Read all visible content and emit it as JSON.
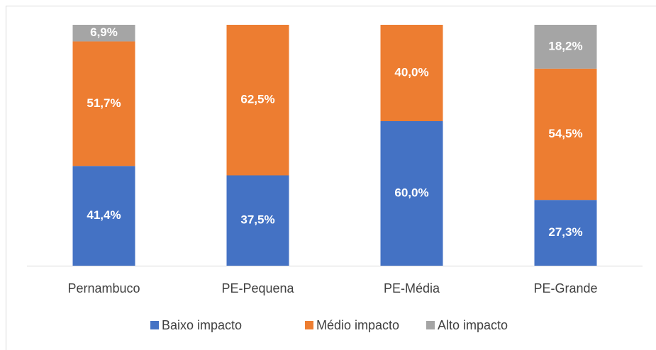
{
  "chart_data": {
    "type": "stacked_bar",
    "categories": [
      "Pernambuco",
      "PE-Pequena",
      "PE-Média",
      "PE-Grande"
    ],
    "series": [
      {
        "name": "Baixo impacto",
        "color": "#4472c4",
        "values": [
          41.4,
          37.5,
          60.0,
          27.3
        ],
        "value_labels": [
          "41,4%",
          "37,5%",
          "60,0%",
          "27,3%"
        ]
      },
      {
        "name": "Médio impacto",
        "color": "#ed7d31",
        "values": [
          51.7,
          62.5,
          40.0,
          54.5
        ],
        "value_labels": [
          "51,7%",
          "62,5%",
          "40,0%",
          "54,5%"
        ]
      },
      {
        "name": "Alto impacto",
        "color": "#a5a5a5",
        "values": [
          6.9,
          null,
          null,
          18.2
        ],
        "value_labels": [
          "6,9%",
          null,
          null,
          "18,2%"
        ]
      }
    ],
    "ylim": [
      0,
      100
    ],
    "legend": "bottom"
  }
}
